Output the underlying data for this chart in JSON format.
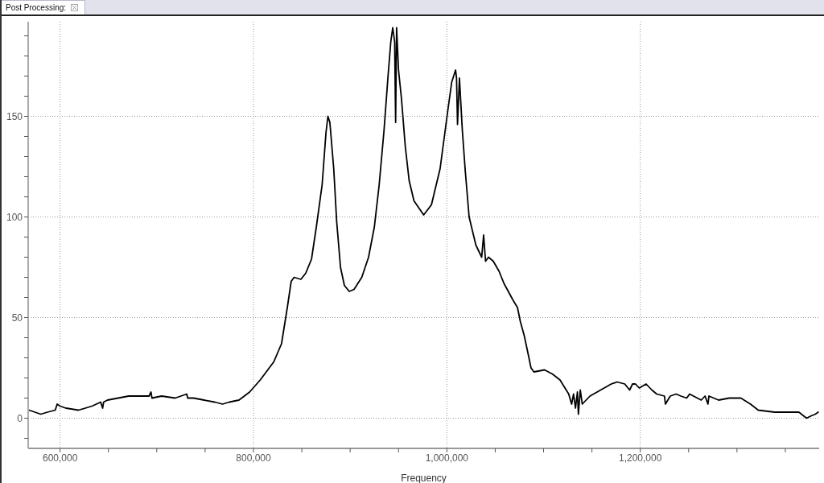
{
  "chart_data": {
    "type": "line",
    "title": "Post Processing:",
    "xlabel": "Frequency",
    "color": "#000000",
    "marker": "none",
    "grid": true,
    "x": [
      568000,
      580000,
      587000,
      595000,
      597000,
      600000,
      606000,
      619000,
      633000,
      642000,
      644000,
      645000,
      649000,
      660000,
      671000,
      683000,
      692000,
      694000,
      695000,
      705000,
      719000,
      731000,
      732000,
      738000,
      749000,
      760000,
      768000,
      775000,
      785000,
      796000,
      807000,
      821000,
      829000,
      835000,
      839000,
      842000,
      849000,
      854000,
      860000,
      865000,
      871000,
      875000,
      877000,
      879000,
      883000,
      886000,
      890000,
      894000,
      899000,
      904000,
      912000,
      919000,
      925000,
      930000,
      935000,
      939000,
      942000,
      944000,
      946000,
      947000,
      948000,
      950000,
      953000,
      957000,
      961000,
      966000,
      976000,
      984000,
      993000,
      1001000,
      1005000,
      1009000,
      1010000,
      1011000,
      1013000,
      1016000,
      1019000,
      1023000,
      1030000,
      1036000,
      1038000,
      1040000,
      1043000,
      1048000,
      1054000,
      1059000,
      1068000,
      1073000,
      1076000,
      1080000,
      1084000,
      1087000,
      1090000,
      1101000,
      1109000,
      1117000,
      1126000,
      1129000,
      1131000,
      1133000,
      1135000,
      1136000,
      1138000,
      1140000,
      1148000,
      1159000,
      1170000,
      1176000,
      1184000,
      1189000,
      1192000,
      1195000,
      1199000,
      1206000,
      1212000,
      1217000,
      1225000,
      1226000,
      1231000,
      1237000,
      1242000,
      1248000,
      1251000,
      1259000,
      1263000,
      1267000,
      1270000,
      1271000,
      1281000,
      1292000,
      1297000,
      1304000,
      1314000,
      1322000,
      1339000,
      1364000,
      1372000,
      1376000,
      1381000,
      1384000
    ],
    "values": [
      4,
      2,
      3,
      4,
      7,
      6,
      5,
      4,
      6,
      8,
      5,
      8,
      9,
      10,
      11,
      11,
      11,
      13,
      10,
      11,
      10,
      12,
      10,
      10,
      9,
      8,
      7,
      8,
      9,
      13,
      19,
      28,
      37,
      55,
      68,
      70,
      69,
      72,
      79,
      95,
      116,
      142,
      150,
      147,
      124,
      98,
      75,
      66,
      63,
      64,
      70,
      80,
      95,
      116,
      143,
      169,
      187,
      194,
      187,
      147,
      194,
      173,
      159,
      135,
      118,
      108,
      101,
      106,
      124,
      153,
      167,
      173,
      169,
      146,
      169,
      143,
      123,
      100,
      86,
      80,
      91,
      78,
      80,
      78,
      73,
      67,
      59,
      55,
      48,
      41,
      32,
      25,
      23,
      24,
      22,
      19,
      12,
      7,
      12,
      5,
      13,
      2,
      14,
      7,
      11,
      14,
      17,
      18,
      17,
      14,
      17,
      17,
      15,
      17,
      14,
      12,
      11,
      7,
      11,
      12,
      11,
      10,
      12,
      10,
      9,
      11,
      7,
      11,
      9,
      10,
      10,
      10,
      7,
      4,
      3,
      3,
      0,
      1,
      2,
      3
    ],
    "xlim": [
      567000,
      1385000
    ],
    "xticks": [
      {
        "value": 600000,
        "label": "600,000"
      },
      {
        "value": 650000,
        "label": null
      },
      {
        "value": 700000,
        "label": null
      },
      {
        "value": 750000,
        "label": null
      },
      {
        "value": 800000,
        "label": "800,000"
      },
      {
        "value": 850000,
        "label": null
      },
      {
        "value": 900000,
        "label": null
      },
      {
        "value": 950000,
        "label": null
      },
      {
        "value": 1000000,
        "label": "1,000,000"
      },
      {
        "value": 1050000,
        "label": null
      },
      {
        "value": 1100000,
        "label": null
      },
      {
        "value": 1150000,
        "label": null
      },
      {
        "value": 1200000,
        "label": "1,200,000"
      },
      {
        "value": 1250000,
        "label": null
      },
      {
        "value": 1300000,
        "label": null
      },
      {
        "value": 1350000,
        "label": null
      }
    ],
    "ylim": [
      -15,
      197
    ],
    "yticks": [
      {
        "value": -10,
        "label": null
      },
      0,
      {
        "value": 10,
        "label": null
      },
      {
        "value": 20,
        "label": null
      },
      {
        "value": 30,
        "label": null
      },
      {
        "value": 40,
        "label": null
      },
      50,
      {
        "value": 60,
        "label": null
      },
      {
        "value": 70,
        "label": null
      },
      {
        "value": 80,
        "label": null
      },
      {
        "value": 90,
        "label": null
      },
      100,
      {
        "value": 110,
        "label": null
      },
      {
        "value": 120,
        "label": null
      },
      {
        "value": 130,
        "label": null
      },
      {
        "value": 140,
        "label": null
      },
      150,
      {
        "value": 160,
        "label": null
      },
      {
        "value": 170,
        "label": null
      },
      {
        "value": 180,
        "label": null
      },
      {
        "value": 190,
        "label": null
      }
    ]
  }
}
